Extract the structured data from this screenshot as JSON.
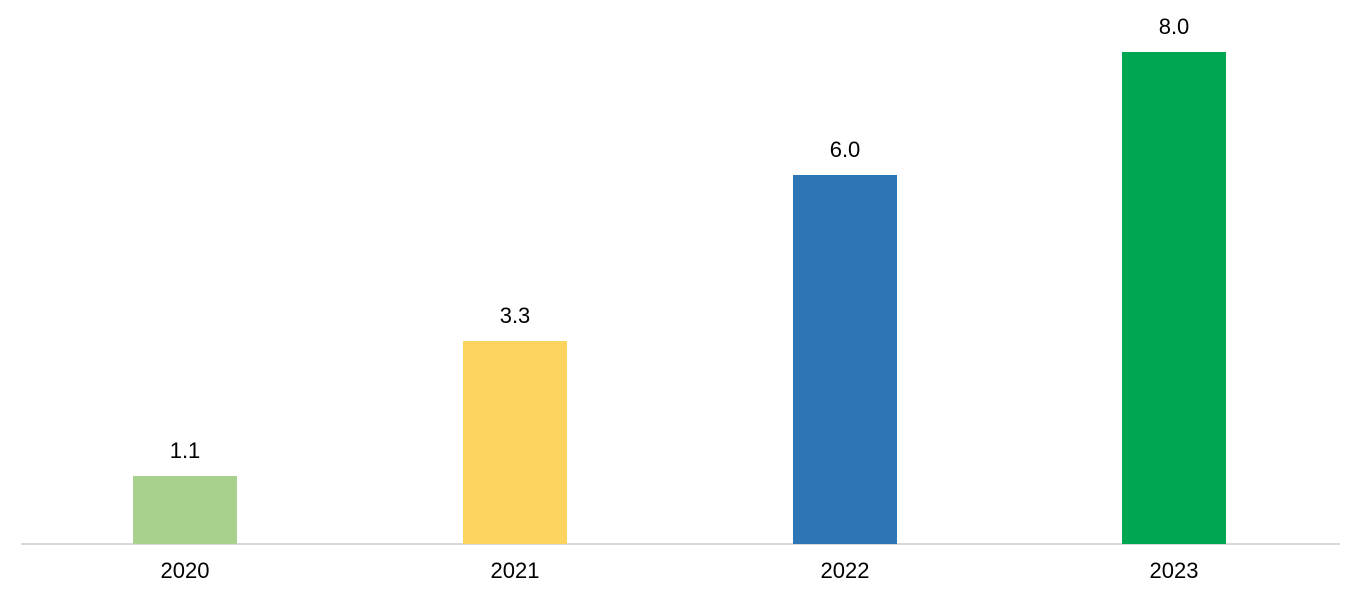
{
  "chart_data": {
    "type": "bar",
    "title": "",
    "categories": [
      "2020",
      "2021",
      "2022",
      "2023"
    ],
    "values": [
      1.1,
      3.3,
      6.0,
      8.0
    ],
    "value_labels": [
      "1.1",
      "3.3",
      "6.0",
      "8.0"
    ],
    "bar_colors": [
      "#a9d18e",
      "#fcd35e",
      "#2e75b6",
      "#00a651"
    ],
    "xlabel": "",
    "ylabel": "",
    "ylim": [
      0,
      8.8
    ],
    "grid": false,
    "legend": false,
    "data_labels": true,
    "axis_line_color": "#d9d9d9",
    "label_color": "#000000",
    "background": "#ffffff"
  }
}
